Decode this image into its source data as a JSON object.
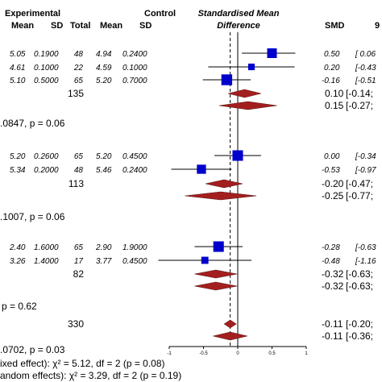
{
  "header": {
    "experimental": "Experimental",
    "control": "Control",
    "mean": "Mean",
    "sd": "SD",
    "total": "Total",
    "mean2": "Mean",
    "sd2": "SD",
    "smd_title_1": "Standardised Mean",
    "smd_title_2": "Difference",
    "smd": "SMD",
    "ci": "9"
  },
  "colors": {
    "square": "#0000CC",
    "diamond": "#A31F1F",
    "line": "#000000"
  },
  "axis": {
    "ticks": [
      "-1",
      "-0.5",
      "0",
      "0.5",
      "1"
    ]
  },
  "groups": [
    {
      "studies": [
        {
          "emean": "5.05",
          "esd": "0.1900",
          "etotal": "48",
          "cmean": "4.94",
          "csd": "0.2400",
          "smd_text": "0.50",
          "ci_text": "[ 0.06"
        },
        {
          "emean": "4.61",
          "esd": "0.1000",
          "etotal": "22",
          "cmean": "4.59",
          "csd": "0.1000",
          "smd_text": "0.20",
          "ci_text": "[-0.43"
        },
        {
          "emean": "5.10",
          "esd": "0.5000",
          "etotal": "65",
          "cmean": "5.20",
          "csd": "0.7000",
          "smd_text": "-0.16",
          "ci_text": "[-0.51"
        }
      ],
      "total": "135",
      "fixed_text": "0.10",
      "fixed_ci": "[-0.14;",
      "random_text": "0.15",
      "random_ci": "[-0.27;",
      "het": ".0847, p = 0.06"
    },
    {
      "studies": [
        {
          "emean": "5.20",
          "esd": "0.2600",
          "etotal": "65",
          "cmean": "5.20",
          "csd": "0.4500",
          "smd_text": "0.00",
          "ci_text": "[-0.34"
        },
        {
          "emean": "5.34",
          "esd": "0.2000",
          "etotal": "48",
          "cmean": "5.46",
          "csd": "0.2400",
          "smd_text": "-0.53",
          "ci_text": "[-0.97"
        }
      ],
      "total": "113",
      "fixed_text": "-0.20",
      "fixed_ci": "[-0.47;",
      "random_text": "-0.25",
      "random_ci": "[-0.77;",
      "het": ".1007, p = 0.06"
    },
    {
      "studies": [
        {
          "emean": "2.40",
          "esd": "1.6000",
          "etotal": "65",
          "cmean": "2.90",
          "csd": "1.9000",
          "smd_text": "-0.28",
          "ci_text": "[-0.63"
        },
        {
          "emean": "3.26",
          "esd": "1.4000",
          "etotal": "17",
          "cmean": "3.77",
          "csd": "0.4500",
          "smd_text": "-0.48",
          "ci_text": "[-1.16"
        }
      ],
      "total": "82",
      "fixed_text": "-0.32",
      "fixed_ci": "[-0.63;",
      "random_text": "-0.32",
      "random_ci": "[-0.63;",
      "het": "p = 0.62"
    }
  ],
  "overall": {
    "total": "330",
    "fixed_text": "-0.11",
    "fixed_ci": "[-0.20;",
    "random_text": "-0.11",
    "random_ci": "[-0.36;",
    "het": ".0702, p = 0.03",
    "test_fixed": "ixed effect): χ² = 5.12, df = 2 (p = 0.08)",
    "test_random": "andom effects): χ² = 3.29, df = 2 (p = 0.19)"
  },
  "chart_data": {
    "type": "forest",
    "xlim": [
      -1,
      1
    ],
    "reference_line": 0,
    "pooled_reference": -0.11,
    "rows": [
      {
        "kind": "study",
        "smd": 0.5,
        "lo": 0.06,
        "hi": 0.84,
        "weight": 1.0
      },
      {
        "kind": "study",
        "smd": 0.2,
        "lo": -0.43,
        "hi": 0.83,
        "weight": 0.45
      },
      {
        "kind": "study",
        "smd": -0.16,
        "lo": -0.51,
        "hi": 0.19,
        "weight": 1.2
      },
      {
        "kind": "fixed",
        "smd": 0.1,
        "lo": -0.14,
        "hi": 0.34
      },
      {
        "kind": "random",
        "smd": 0.15,
        "lo": -0.27,
        "hi": 0.57
      },
      {
        "kind": "study",
        "smd": 0.0,
        "lo": -0.34,
        "hi": 0.34,
        "weight": 1.15
      },
      {
        "kind": "study",
        "smd": -0.53,
        "lo": -0.97,
        "hi": -0.09,
        "weight": 0.9
      },
      {
        "kind": "fixed",
        "smd": -0.2,
        "lo": -0.47,
        "hi": 0.07
      },
      {
        "kind": "random",
        "smd": -0.25,
        "lo": -0.77,
        "hi": 0.27
      },
      {
        "kind": "study",
        "smd": -0.28,
        "lo": -0.63,
        "hi": 0.07,
        "weight": 1.15
      },
      {
        "kind": "study",
        "smd": -0.48,
        "lo": -1.16,
        "hi": 0.2,
        "weight": 0.55
      },
      {
        "kind": "fixed",
        "smd": -0.32,
        "lo": -0.63,
        "hi": -0.01
      },
      {
        "kind": "random",
        "smd": -0.32,
        "lo": -0.63,
        "hi": -0.01
      },
      {
        "kind": "fixed",
        "smd": -0.11,
        "lo": -0.2,
        "hi": -0.02
      },
      {
        "kind": "random",
        "smd": -0.11,
        "lo": -0.36,
        "hi": 0.14
      }
    ]
  }
}
